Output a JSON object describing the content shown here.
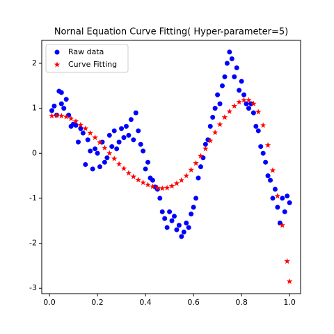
{
  "chart_data": {
    "type": "scatter",
    "title": "Nornal Equation Curve Fitting( Hyper-parameter=5)",
    "legend": "upper left",
    "xlim": [
      -0.032,
      1.046
    ],
    "ylim": [
      -3.12,
      2.51
    ],
    "xticks": [
      {
        "value": 0,
        "label": "0.0"
      },
      {
        "value": 0.2,
        "label": "0.2"
      },
      {
        "value": 0.4,
        "label": "0.4"
      },
      {
        "value": 0.6,
        "label": "0.6"
      },
      {
        "value": 0.8,
        "label": "0.8"
      },
      {
        "value": 1,
        "label": "1.0"
      }
    ],
    "yticks": [
      -3,
      -2,
      -1,
      0,
      1,
      2
    ],
    "series": [
      {
        "name": "Raw data",
        "color": "#0000ff",
        "marker": "circle",
        "x": [
          0.01,
          0.02,
          0.03,
          0.04,
          0.05,
          0.05,
          0.06,
          0.07,
          0.08,
          0.09,
          0.1,
          0.11,
          0.12,
          0.13,
          0.14,
          0.15,
          0.16,
          0.17,
          0.18,
          0.19,
          0.2,
          0.21,
          0.22,
          0.23,
          0.24,
          0.25,
          0.26,
          0.27,
          0.28,
          0.29,
          0.3,
          0.31,
          0.32,
          0.33,
          0.34,
          0.35,
          0.36,
          0.37,
          0.38,
          0.39,
          0.4,
          0.41,
          0.42,
          0.43,
          0.44,
          0.45,
          0.46,
          0.47,
          0.48,
          0.49,
          0.5,
          0.51,
          0.52,
          0.53,
          0.54,
          0.55,
          0.56,
          0.57,
          0.58,
          0.59,
          0.6,
          0.61,
          0.62,
          0.63,
          0.64,
          0.65,
          0.66,
          0.67,
          0.68,
          0.69,
          0.7,
          0.71,
          0.72,
          0.73,
          0.74,
          0.75,
          0.76,
          0.77,
          0.78,
          0.79,
          0.8,
          0.81,
          0.82,
          0.83,
          0.84,
          0.85,
          0.86,
          0.87,
          0.88,
          0.89,
          0.9,
          0.91,
          0.92,
          0.93,
          0.94,
          0.95,
          0.96,
          0.97,
          0.98,
          0.99,
          1.0
        ],
        "values": [
          0.95,
          1.05,
          0.85,
          1.38,
          1.35,
          1.1,
          1.0,
          1.2,
          0.85,
          0.6,
          0.65,
          0.62,
          0.25,
          0.55,
          0.45,
          -0.25,
          0.3,
          0.05,
          -0.35,
          0.1,
          0.0,
          -0.3,
          0.25,
          -0.2,
          -0.1,
          0.4,
          0.15,
          0.5,
          0.1,
          0.25,
          0.55,
          0.35,
          0.6,
          0.4,
          0.75,
          0.3,
          0.9,
          0.5,
          0.2,
          0.05,
          -0.35,
          -0.2,
          -0.55,
          -0.6,
          -0.75,
          -0.8,
          -1.0,
          -1.3,
          -1.45,
          -1.65,
          -1.3,
          -1.5,
          -1.4,
          -1.7,
          -1.6,
          -1.85,
          -1.75,
          -1.55,
          -1.65,
          -1.35,
          -1.2,
          -1.0,
          -0.55,
          -0.3,
          -0.1,
          0.2,
          0.3,
          0.6,
          0.8,
          1.0,
          1.3,
          1.1,
          1.5,
          1.7,
          2.0,
          2.25,
          2.1,
          1.7,
          1.9,
          1.4,
          1.6,
          1.3,
          1.1,
          1.0,
          1.1,
          0.9,
          0.6,
          0.5,
          0.15,
          0.0,
          -0.2,
          -0.5,
          -0.6,
          -1.0,
          -0.8,
          -1.2,
          -1.55,
          -1.0,
          -1.3,
          -0.95,
          -1.1
        ]
      },
      {
        "name": "Curve Fitting",
        "color": "#ff0000",
        "marker": "star",
        "x": [
          0.01,
          0.03,
          0.05,
          0.07,
          0.09,
          0.11,
          0.13,
          0.15,
          0.17,
          0.19,
          0.21,
          0.23,
          0.25,
          0.27,
          0.29,
          0.31,
          0.33,
          0.35,
          0.37,
          0.39,
          0.41,
          0.43,
          0.45,
          0.47,
          0.49,
          0.51,
          0.53,
          0.55,
          0.57,
          0.59,
          0.61,
          0.63,
          0.65,
          0.67,
          0.69,
          0.71,
          0.73,
          0.75,
          0.77,
          0.79,
          0.81,
          0.83,
          0.85,
          0.87,
          0.89,
          0.91,
          0.93,
          0.95,
          0.97,
          0.99,
          1.0
        ],
        "values": [
          0.83,
          0.84,
          0.83,
          0.81,
          0.77,
          0.71,
          0.63,
          0.55,
          0.45,
          0.35,
          0.24,
          0.12,
          0.0,
          -0.12,
          -0.24,
          -0.34,
          -0.44,
          -0.52,
          -0.59,
          -0.65,
          -0.7,
          -0.74,
          -0.77,
          -0.78,
          -0.77,
          -0.73,
          -0.67,
          -0.6,
          -0.5,
          -0.37,
          -0.22,
          -0.06,
          0.1,
          0.28,
          0.46,
          0.64,
          0.8,
          0.93,
          1.05,
          1.14,
          1.18,
          1.18,
          1.1,
          0.92,
          0.62,
          0.18,
          -0.38,
          -0.95,
          -1.6,
          -2.4,
          -2.85
        ]
      }
    ]
  }
}
